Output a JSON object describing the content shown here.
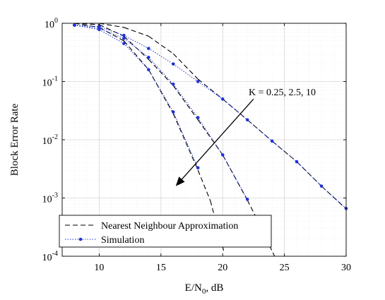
{
  "chart_data": {
    "type": "line",
    "title": "",
    "xlabel_main": "E/N",
    "xlabel_sub": "0",
    "xlabel_tail": ", dB",
    "ylabel": "Block Error Rate",
    "xlim": [
      7,
      30
    ],
    "ylim": [
      0.0001,
      1
    ],
    "yscale": "log",
    "grid": true,
    "xticks": [
      10,
      15,
      20,
      25,
      30
    ],
    "xtick_labels": [
      "10",
      "15",
      "20",
      "25",
      "30"
    ],
    "yticks": [
      1,
      0.1,
      0.01,
      0.001,
      0.0001
    ],
    "ytick_base": "10",
    "ytick_exponents": [
      "0",
      "-1",
      "-2",
      "-3",
      "-4"
    ],
    "legend": {
      "position": "bottom-left",
      "entries": [
        "Nearest Neighbour Approximation",
        "Simulation"
      ]
    },
    "annotation": {
      "text": "K = 0.25, 2.5, 10",
      "arrow_from": [
        22.5,
        0.05
      ],
      "arrow_to": [
        16.2,
        0.0016
      ]
    },
    "series": [
      {
        "name": "Nearest Neighbour Approximation",
        "group": "K = 0.25",
        "x": [
          8,
          10,
          12,
          14,
          16,
          18,
          20,
          22,
          24,
          26,
          28,
          30
        ],
        "values": [
          1.0,
          1.0,
          0.85,
          0.6,
          0.3,
          0.11,
          0.05,
          0.022,
          0.0095,
          0.0042,
          0.0016,
          0.00065
        ]
      },
      {
        "name": "Nearest Neighbour Approximation",
        "group": "K = 2.5",
        "x": [
          8,
          10,
          12,
          14,
          16,
          18,
          20,
          22,
          23,
          24.2
        ],
        "values": [
          1.0,
          0.95,
          0.6,
          0.24,
          0.085,
          0.022,
          0.0055,
          0.00092,
          0.00035,
          0.0001
        ]
      },
      {
        "name": "Nearest Neighbour Approximation",
        "group": "K = 10",
        "x": [
          8,
          10,
          12,
          14,
          16,
          18,
          19,
          20.1
        ],
        "values": [
          1.0,
          0.85,
          0.5,
          0.16,
          0.028,
          0.003,
          0.0009,
          0.00012
        ]
      },
      {
        "name": "Simulation",
        "group": "K = 0.25",
        "x": [
          8,
          10,
          12,
          14,
          16,
          18,
          20,
          22,
          24,
          26,
          28,
          30
        ],
        "values": [
          0.93,
          0.88,
          0.62,
          0.37,
          0.2,
          0.1,
          0.05,
          0.022,
          0.0095,
          0.0042,
          0.0016,
          0.00066
        ]
      },
      {
        "name": "Simulation",
        "group": "K = 2.5",
        "x": [
          8,
          10,
          12,
          14,
          16,
          18,
          20,
          22
        ],
        "values": [
          0.93,
          0.82,
          0.55,
          0.26,
          0.09,
          0.024,
          0.0055,
          0.00095
        ]
      },
      {
        "name": "Simulation",
        "group": "K = 10",
        "x": [
          8,
          10,
          12,
          14,
          16,
          18
        ],
        "values": [
          0.93,
          0.78,
          0.45,
          0.16,
          0.03,
          0.0033
        ]
      }
    ]
  }
}
